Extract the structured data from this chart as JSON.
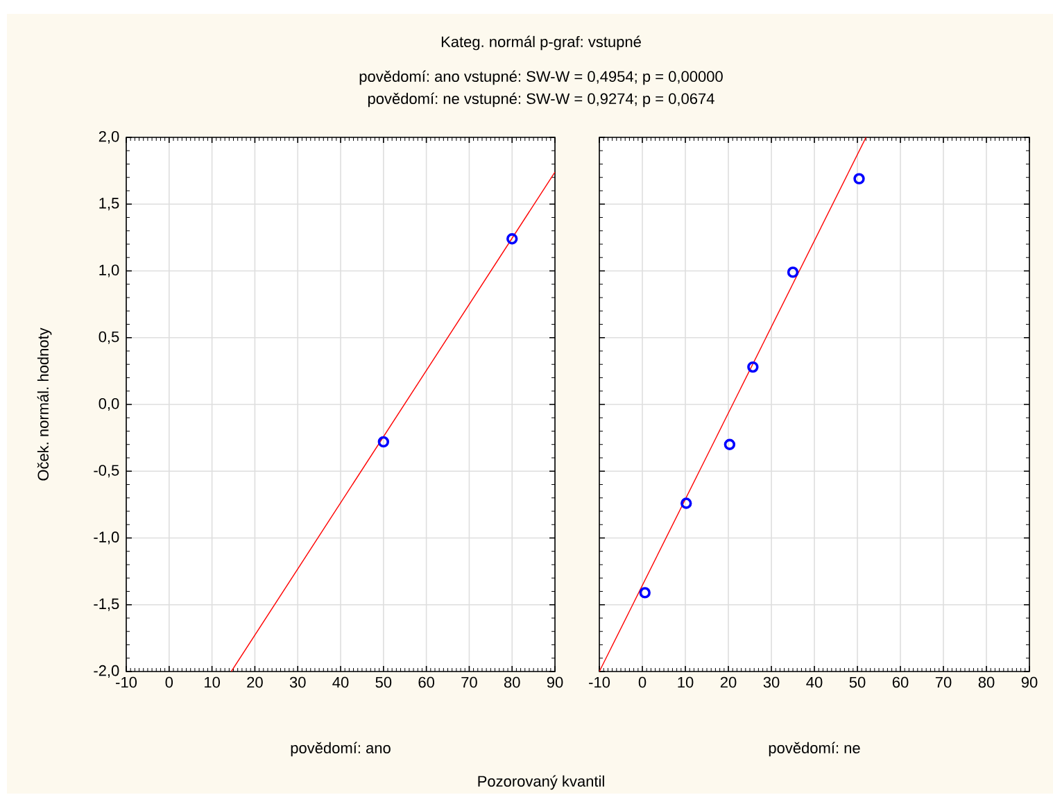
{
  "chart_data": [
    {
      "type": "scatter",
      "title": "Kateg. normál p-graf: vstupné",
      "subtitle": "povědomí: ano  vstupné:  SW-W = 0,4954; p = 0,00000",
      "xlabel": "povědomí: ano",
      "ylabel": "Oček. normál. hodnoty",
      "annotations": [
        "Pozorovaný kvantil"
      ],
      "xlim": [
        -10,
        90
      ],
      "xticks": [
        -10,
        0,
        10,
        20,
        30,
        40,
        50,
        60,
        70,
        80,
        90
      ],
      "ylim": [
        -2,
        2
      ],
      "yticks": [
        {
          "value": -2,
          "label": "-2,0"
        },
        {
          "value": -1.5,
          "label": "-1,5"
        },
        {
          "value": -1,
          "label": "-1,0"
        },
        {
          "value": -0.5,
          "label": "-0,5"
        },
        {
          "value": 0,
          "label": "0,0"
        },
        {
          "value": 0.5,
          "label": "0,5"
        },
        {
          "value": 1,
          "label": "1,0"
        },
        {
          "value": 1.5,
          "label": "1,5"
        },
        {
          "value": 2,
          "label": "2,0"
        }
      ],
      "grid": true,
      "series": [
        {
          "color": "#0000ff",
          "marker": "circle",
          "x": [
            50,
            80
          ],
          "values": [
            -0.28,
            1.24
          ]
        },
        {
          "type": "line",
          "color": "#ff0000",
          "marker": "none",
          "line_style": "solid",
          "x": [
            14.5,
            90
          ],
          "values": [
            -2,
            1.74
          ]
        }
      ]
    },
    {
      "type": "scatter",
      "subtitle": "povědomí: ne  vstupné:  SW-W = 0,9274; p = 0,0674",
      "xlabel": "povědomí: ne",
      "xlim": [
        -10,
        90
      ],
      "xticks": [
        -10,
        0,
        10,
        20,
        30,
        40,
        50,
        60,
        70,
        80,
        90
      ],
      "ylim": [
        -2,
        2
      ],
      "tick_labels": "x",
      "grid": true,
      "series": [
        {
          "color": "#0000ff",
          "marker": "circle",
          "x": [
            0.6,
            10.2,
            20.3,
            25.7,
            35,
            50.4
          ],
          "values": [
            -1.41,
            -0.74,
            -0.3,
            0.28,
            0.99,
            1.69
          ]
        },
        {
          "type": "line",
          "color": "#ff0000",
          "marker": "none",
          "line_style": "solid",
          "x": [
            -10,
            52
          ],
          "values": [
            -2,
            2
          ]
        }
      ]
    }
  ]
}
